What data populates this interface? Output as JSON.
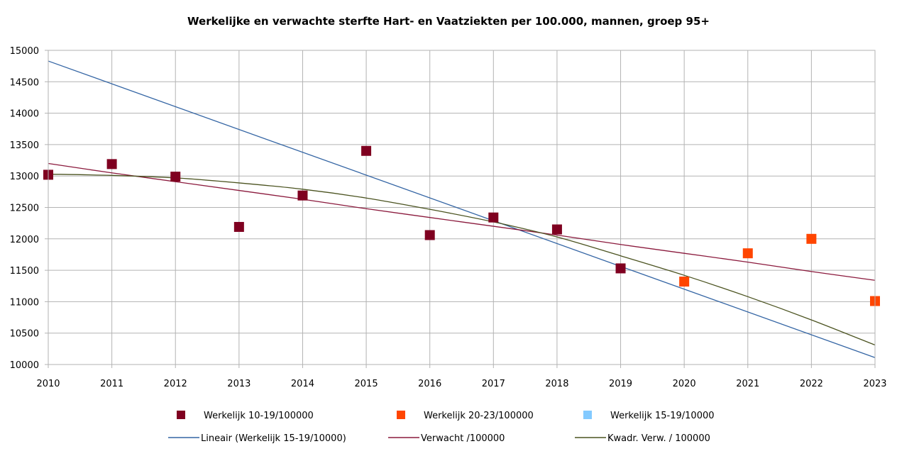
{
  "chart_data": {
    "type": "scatter",
    "title": "Werkelijke en verwachte sterfte Hart- en Vaatziekten per 100.000, mannen, groep 95+",
    "xlabel": "",
    "ylabel": "",
    "xlim": [
      2010,
      2023
    ],
    "ylim": [
      10000,
      15000
    ],
    "x_ticks": [
      "2010",
      "2011",
      "2012",
      "2013",
      "2014",
      "2015",
      "2016",
      "2017",
      "2018",
      "2019",
      "2020",
      "2021",
      "2022",
      "2023"
    ],
    "y_ticks": [
      "10000",
      "10500",
      "11000",
      "11500",
      "12000",
      "12500",
      "13000",
      "13500",
      "14000",
      "14500",
      "15000"
    ],
    "grid": true,
    "legend_position": "bottom",
    "series": [
      {
        "name": "Werkelijk 10-19/100000",
        "kind": "marker",
        "color": "#7f0020",
        "x": [
          2010,
          2011,
          2012,
          2013,
          2014,
          2015,
          2016,
          2017,
          2018,
          2019
        ],
        "y": [
          13020,
          13190,
          12990,
          12190,
          12690,
          13400,
          12060,
          12340,
          12150,
          11530
        ]
      },
      {
        "name": "Werkelijk 20-23/100000",
        "kind": "marker",
        "color": "#ff4500",
        "x": [
          2020,
          2021,
          2022,
          2023
        ],
        "y": [
          11320,
          11770,
          12000,
          11010
        ]
      },
      {
        "name": "Werkelijk 15-19/10000",
        "kind": "marker",
        "color": "#83caff",
        "x": [],
        "y": []
      },
      {
        "name": "Lineair (Werkelijk 15-19/10000)",
        "kind": "line",
        "color": "#3465a4",
        "x": [
          2010,
          2023
        ],
        "y": [
          14830,
          10110
        ]
      },
      {
        "name": "Verwacht /100000",
        "kind": "line",
        "color": "#8b1a3d",
        "x": [
          2010,
          2011,
          2012,
          2013,
          2014,
          2015,
          2016,
          2017,
          2018,
          2019,
          2020,
          2021,
          2022,
          2023
        ],
        "y": [
          13200,
          13050,
          12910,
          12770,
          12630,
          12480,
          12340,
          12200,
          12060,
          11910,
          11770,
          11630,
          11480,
          11340
        ]
      },
      {
        "name": "Kwadr. Verw. / 100000",
        "kind": "line",
        "color": "#4b5320",
        "x": [
          2010,
          2011,
          2012,
          2013,
          2014,
          2015,
          2016,
          2017,
          2018,
          2019,
          2020,
          2021,
          2022,
          2023
        ],
        "y": [
          13030,
          13010,
          12970,
          12890,
          12790,
          12650,
          12470,
          12270,
          12030,
          11730,
          11420,
          11080,
          10710,
          10310
        ]
      }
    ]
  }
}
